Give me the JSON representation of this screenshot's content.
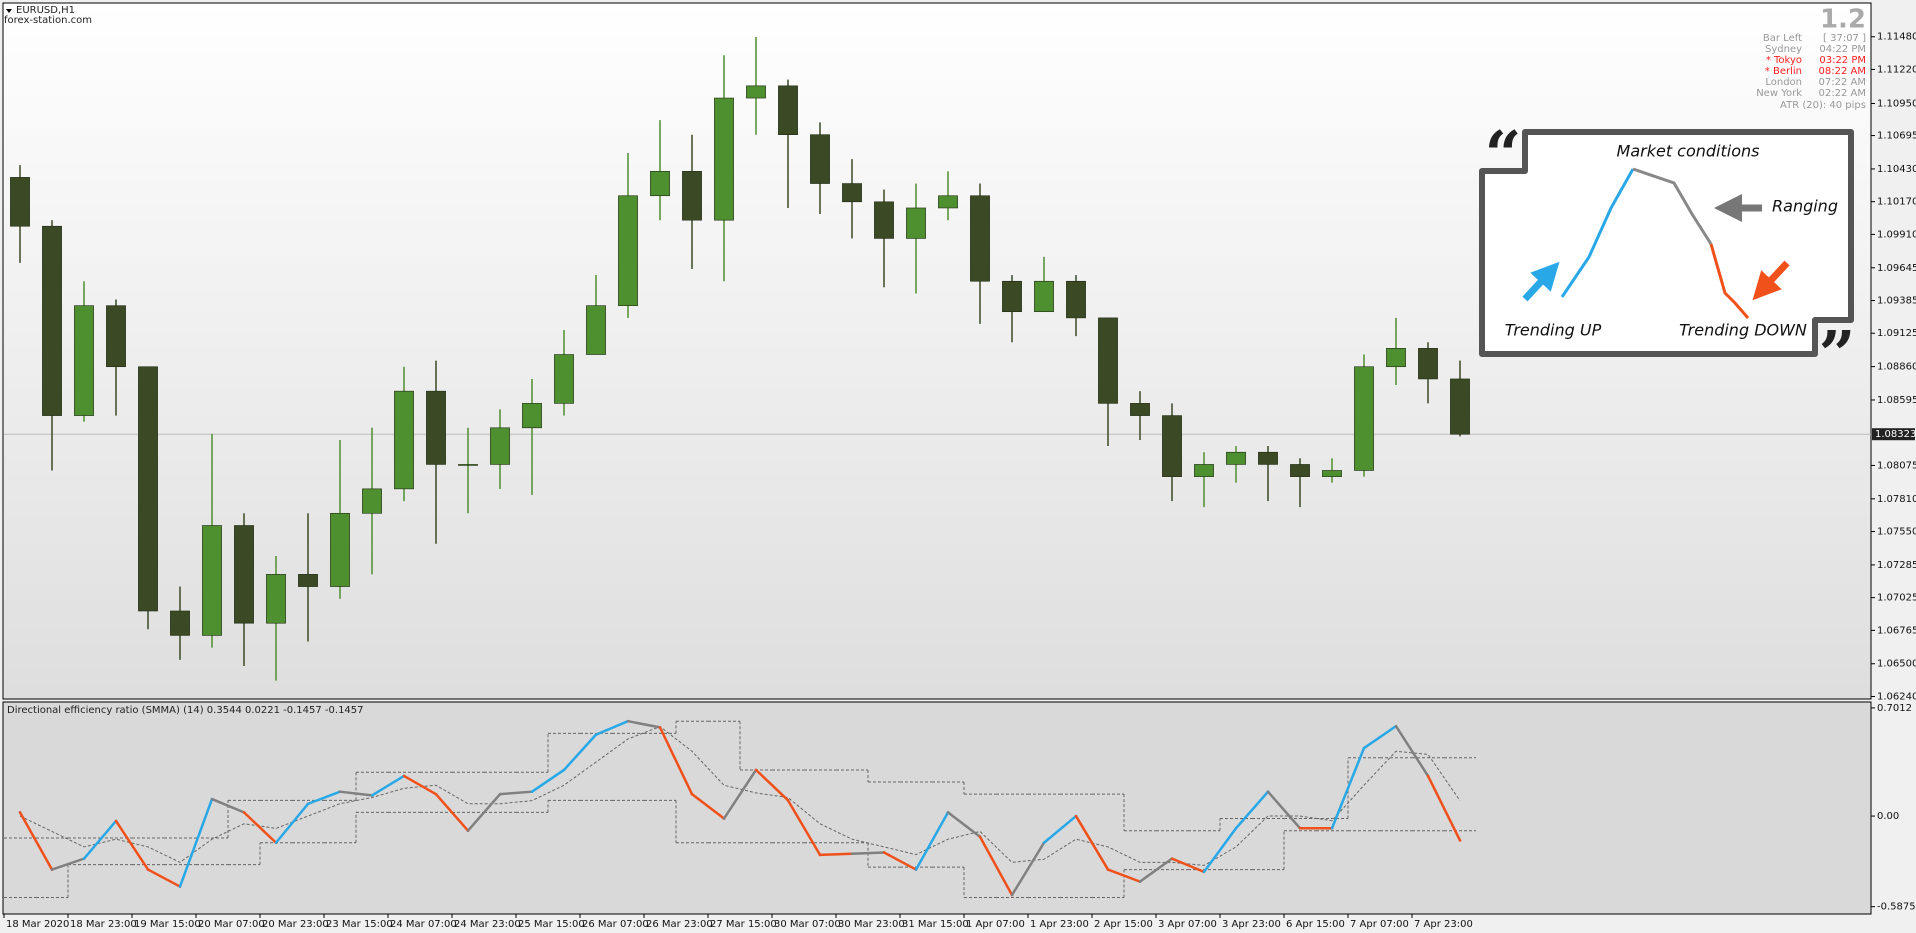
{
  "chart_data": [
    {
      "type": "candlestick",
      "title": "EURUSD,H1",
      "subtitle": "forex-station.com",
      "open": [
        1.10363,
        1.09975,
        1.08471,
        1.09344,
        1.08859,
        1.06919,
        1.06725,
        1.07598,
        1.06822,
        1.0721,
        1.07113,
        1.07695,
        1.07889,
        1.08665,
        1.08083,
        1.08083,
        1.08374,
        1.08568,
        1.08956,
        1.09344,
        1.10217,
        1.10411,
        1.10023,
        1.10993,
        1.1109,
        1.10702,
        1.10314,
        1.10169,
        1.09878,
        1.1012,
        1.10217,
        1.09538,
        1.09296,
        1.09538,
        1.09247,
        1.08568,
        1.08471,
        1.07986,
        1.08083,
        1.0818,
        1.08083,
        1.07986,
        1.08035,
        1.08859,
        1.09005,
        1.08762
      ],
      "high": [
        1.1046,
        1.10023,
        1.09538,
        1.09393,
        1.08859,
        1.07113,
        1.08326,
        1.07695,
        1.07356,
        1.07695,
        1.08277,
        1.08374,
        1.08859,
        1.08908,
        1.08374,
        1.0852,
        1.08762,
        1.0915,
        1.09587,
        1.10557,
        1.10818,
        1.10702,
        1.11333,
        1.11478,
        1.11139,
        1.108,
        1.10508,
        1.10266,
        1.10314,
        1.10411,
        1.10314,
        1.09587,
        1.09732,
        1.09587,
        1.09247,
        1.08665,
        1.08568,
        1.0818,
        1.08229,
        1.08229,
        1.08132,
        1.08132,
        1.08956,
        1.09247,
        1.09053,
        1.08908
      ],
      "low": [
        1.09684,
        1.08035,
        1.08423,
        1.08471,
        1.06774,
        1.06531,
        1.06628,
        1.06482,
        1.06366,
        1.06677,
        1.07016,
        1.0721,
        1.07792,
        1.07453,
        1.07695,
        1.07889,
        1.07841,
        1.08471,
        1.08956,
        1.09247,
        1.10023,
        1.09635,
        1.09538,
        1.10702,
        1.1012,
        1.10072,
        1.09878,
        1.0949,
        1.09441,
        1.10023,
        1.09199,
        1.09053,
        1.09296,
        1.09102,
        1.08229,
        1.08277,
        1.07792,
        1.07744,
        1.07938,
        1.07792,
        1.07744,
        1.07938,
        1.07986,
        1.08714,
        1.08568,
        1.08306
      ],
      "close": [
        1.09975,
        1.08471,
        1.09344,
        1.08859,
        1.06919,
        1.06725,
        1.07598,
        1.06822,
        1.0721,
        1.07113,
        1.07695,
        1.07889,
        1.08665,
        1.08083,
        1.08083,
        1.08374,
        1.08568,
        1.08956,
        1.09344,
        1.10217,
        1.10411,
        1.10023,
        1.10993,
        1.1109,
        1.10702,
        1.10314,
        1.10169,
        1.09878,
        1.1012,
        1.10217,
        1.09538,
        1.09296,
        1.09538,
        1.09247,
        1.08568,
        1.08471,
        1.07986,
        1.08083,
        1.0818,
        1.08083,
        1.07986,
        1.08035,
        1.08859,
        1.09005,
        1.08762,
        1.08323
      ],
      "up_color": "#4e8f2f",
      "down_color": "#3b4a24",
      "last_price": 1.08323,
      "xlim": [
        0,
        46
      ],
      "xticks": [
        {
          "value": 0,
          "label": "18 Mar 2020"
        },
        {
          "value": 2,
          "label": "18 Mar 23:00"
        },
        {
          "value": 4,
          "label": "19 Mar 15:00"
        },
        {
          "value": 6,
          "label": "20 Mar 07:00"
        },
        {
          "value": 8,
          "label": "20 Mar 23:00"
        },
        {
          "value": 10,
          "label": "23 Mar 15:00"
        },
        {
          "value": 12,
          "label": "24 Mar 07:00"
        },
        {
          "value": 14,
          "label": "24 Mar 23:00"
        },
        {
          "value": 16,
          "label": "25 Mar 15:00"
        },
        {
          "value": 18,
          "label": "26 Mar 07:00"
        },
        {
          "value": 20,
          "label": "26 Mar 23:00"
        },
        {
          "value": 22,
          "label": "27 Mar 15:00"
        },
        {
          "value": 24,
          "label": "30 Mar 07:00"
        },
        {
          "value": 26,
          "label": "30 Mar 23:00"
        },
        {
          "value": 28,
          "label": "31 Mar 15:00"
        },
        {
          "value": 30,
          "label": "1 Apr 07:00"
        },
        {
          "value": 32,
          "label": "1 Apr 23:00"
        },
        {
          "value": 34,
          "label": "2 Apr 15:00"
        },
        {
          "value": 36,
          "label": "3 Apr 07:00"
        },
        {
          "value": 38,
          "label": "3 Apr 23:00"
        },
        {
          "value": 40,
          "label": "6 Apr 15:00"
        },
        {
          "value": 42,
          "label": "7 Apr 07:00"
        },
        {
          "value": 44,
          "label": "7 Apr 23:00"
        }
      ],
      "ylim": [
        1.0622,
        1.1174
      ],
      "yticks": [
        {
          "value": 1.1148,
          "label": "1.11480"
        },
        {
          "value": 1.1122,
          "label": "1.11220"
        },
        {
          "value": 1.1095,
          "label": "1.10950"
        },
        1.10695,
        {
          "value": 1.1043,
          "label": "1.10430"
        },
        {
          "value": 1.1017,
          "label": "1.10170"
        },
        {
          "value": 1.0991,
          "label": "1.09910"
        },
        1.09645,
        1.09385,
        1.09125,
        {
          "value": 1.0886,
          "label": "1.08860"
        },
        1.08595,
        1.08075,
        {
          "value": 1.0781,
          "label": "1.07810"
        },
        {
          "value": 1.0755,
          "label": "1.07550"
        },
        1.07285,
        1.07025,
        1.06765,
        {
          "value": 1.065,
          "label": "1.06500"
        },
        {
          "value": 1.0624,
          "label": "1.06240"
        }
      ]
    },
    {
      "type": "line",
      "title": "Directional efficiency ratio (SMMA) (14) 0.3544 0.0221 -0.1457 -0.1457",
      "values": [
        0.024,
        -0.347,
        -0.276,
        -0.032,
        -0.347,
        -0.457,
        0.11,
        0.024,
        -0.173,
        0.079,
        0.158,
        0.134,
        0.26,
        0.142,
        -0.095,
        0.142,
        0.158,
        0.299,
        0.528,
        0.615,
        0.575,
        0.142,
        -0.016,
        0.299,
        0.102,
        -0.252,
        -0.244,
        -0.236,
        -0.347,
        0.024,
        -0.134,
        -0.512,
        -0.173,
        0,
        -0.347,
        -0.425,
        -0.276,
        -0.362,
        -0.079,
        0.158,
        -0.079,
        -0.079,
        0.441,
        0.583,
        0.26,
        -0.158
      ],
      "point_colors": [
        "#29a8e8",
        "#f0501a",
        "#808080",
        "#29a8e8",
        "#f0501a",
        "#f0501a",
        "#29a8e8",
        "#808080",
        "#f0501a",
        "#29a8e8",
        "#29a8e8",
        "#808080",
        "#29a8e8",
        "#f0501a",
        "#f0501a",
        "#808080",
        "#808080",
        "#29a8e8",
        "#29a8e8",
        "#29a8e8",
        "#808080",
        "#f0501a",
        "#f0501a",
        "#808080",
        "#f0501a",
        "#f0501a",
        "#f0501a",
        "#808080",
        "#f0501a",
        "#29a8e8",
        "#808080",
        "#f0501a",
        "#808080",
        "#29a8e8",
        "#f0501a",
        "#f0501a",
        "#808080",
        "#f0501a",
        "#29a8e8",
        "#29a8e8",
        "#808080",
        "#f0501a",
        "#29a8e8",
        "#29a8e8",
        "#808080",
        "#f0501a"
      ],
      "signal": [
        0.0,
        -0.1,
        -0.2,
        -0.15,
        -0.2,
        -0.3,
        -0.15,
        -0.05,
        -0.08,
        0.0,
        0.08,
        0.12,
        0.18,
        0.2,
        0.08,
        0.08,
        0.1,
        0.2,
        0.35,
        0.5,
        0.58,
        0.42,
        0.2,
        0.15,
        0.12,
        -0.05,
        -0.15,
        -0.2,
        -0.25,
        -0.15,
        -0.1,
        -0.3,
        -0.28,
        -0.15,
        -0.2,
        -0.3,
        -0.3,
        -0.32,
        -0.2,
        0.0,
        0.0,
        -0.03,
        0.2,
        0.42,
        0.4,
        0.1
      ],
      "upper_level": [
        -0.142,
        -0.142,
        -0.142,
        -0.142,
        -0.142,
        -0.142,
        -0.142,
        0.102,
        0.102,
        0.102,
        0.102,
        0.284,
        0.284,
        0.284,
        0.284,
        0.284,
        0.284,
        0.536,
        0.536,
        0.536,
        0.536,
        0.615,
        0.615,
        0.299,
        0.299,
        0.299,
        0.299,
        0.221,
        0.221,
        0.221,
        0.142,
        0.142,
        0.142,
        0.142,
        0.142,
        -0.095,
        -0.095,
        -0.095,
        -0.016,
        -0.016,
        -0.016,
        -0.016,
        0.378,
        0.378,
        0.378,
        0.378
      ],
      "lower_level": [
        -0.528,
        -0.528,
        -0.315,
        -0.315,
        -0.315,
        -0.315,
        -0.315,
        -0.315,
        -0.173,
        -0.173,
        -0.173,
        0.024,
        0.024,
        0.024,
        0.024,
        0.024,
        0.024,
        0.102,
        0.102,
        0.102,
        0.102,
        -0.173,
        -0.173,
        -0.173,
        -0.173,
        -0.173,
        -0.173,
        -0.331,
        -0.331,
        -0.331,
        -0.528,
        -0.528,
        -0.528,
        -0.528,
        -0.528,
        -0.347,
        -0.347,
        -0.347,
        -0.347,
        -0.347,
        -0.095,
        -0.095,
        -0.095,
        -0.095,
        -0.095,
        -0.095
      ],
      "dash_color": "#666666",
      "xlim": [
        0,
        46
      ],
      "ylim": [
        -0.635,
        0.733
      ],
      "yticks": [
        0.7012,
        {
          "value": 0,
          "label": "0.00"
        },
        -0.5875
      ]
    }
  ],
  "info_panel": {
    "version": "1.2",
    "rows": [
      {
        "label": "Bar Left",
        "value": "[ 37:07 ]",
        "color": "#999999"
      },
      {
        "label": "Sydney",
        "value": "04:22 PM",
        "color": "#999999"
      },
      {
        "label": "* Tokyo",
        "value": "03:22 PM",
        "color": "#ff2020"
      },
      {
        "label": "* Berlin",
        "value": "08:22 AM",
        "color": "#ff2020"
      },
      {
        "label": "London",
        "value": "07:22 AM",
        "color": "#999999"
      },
      {
        "label": "New York",
        "value": "02:22 AM",
        "color": "#999999"
      }
    ],
    "footer": "ATR (20): 40 pips"
  },
  "inset": {
    "title": "Market conditions",
    "ranging": "Ranging",
    "trending_up": "Trending UP",
    "trending_down": "Trending DOWN",
    "open_quote": "“",
    "close_quote": "”"
  }
}
